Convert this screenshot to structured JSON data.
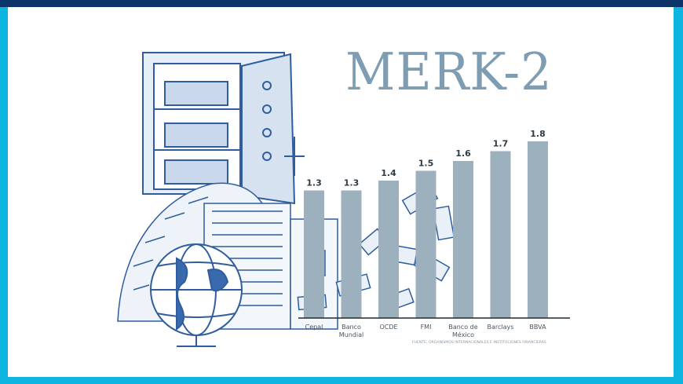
{
  "title": "MERK-2",
  "colors": {
    "frame_top": "#0b3368",
    "frame_side": "#0bb5df",
    "bar": "#9db0bd",
    "title": "#7e9db3",
    "illustration": "#2f5d9e"
  },
  "chart_data": {
    "type": "bar",
    "title": "MERK-2",
    "categories": [
      "Cepal",
      "Banco Mundial",
      "OCDE",
      "FMI",
      "Banco de México",
      "Barclays",
      "BBVA"
    ],
    "category_lines": [
      [
        "Cepal"
      ],
      [
        "Banco",
        "Mundial"
      ],
      [
        "OCDE"
      ],
      [
        "FMI"
      ],
      [
        "Banco de",
        "México"
      ],
      [
        "Barclays"
      ],
      [
        "BBVA"
      ]
    ],
    "values": [
      1.3,
      1.3,
      1.4,
      1.5,
      1.6,
      1.7,
      1.8
    ],
    "value_labels": [
      "1.3",
      "1.3",
      "1.4",
      "1.5",
      "1.6",
      "1.7",
      "1.8"
    ],
    "xlabel": "",
    "ylabel": "",
    "ylim": [
      0,
      1.8
    ],
    "grid": false,
    "source": "FUENTE: ORGANISMOS INTERNACIONALES E INSTITUCIONES FINANCIERAS"
  },
  "illustration": [
    "bank-vault",
    "money-pile",
    "city-buildings",
    "globe",
    "flying-banknotes"
  ]
}
